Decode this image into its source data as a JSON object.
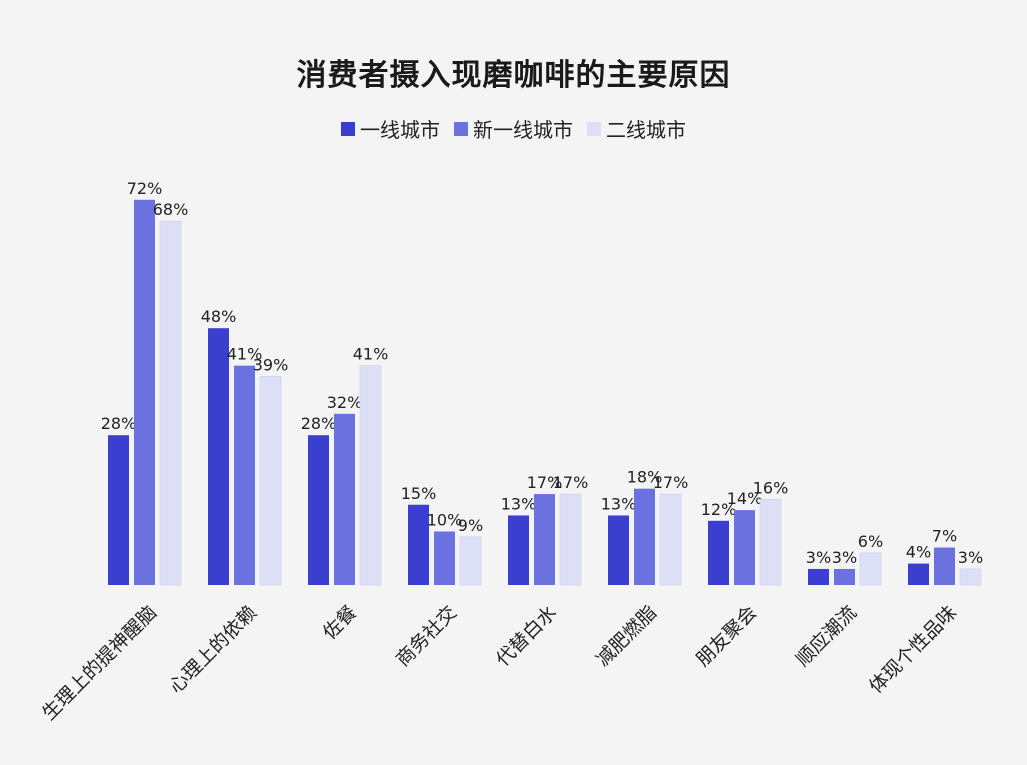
{
  "chart_data": {
    "type": "bar",
    "title": "消费者摄入现磨咖啡的主要原因",
    "categories": [
      "生理上的提神醒脑",
      "心理上的依赖",
      "佐餐",
      "商务社交",
      "代替白水",
      "减肥燃脂",
      "朋友聚会",
      "顺应潮流",
      "体现个性品味"
    ],
    "series": [
      {
        "name": "一线城市",
        "color": "#3a3fd0",
        "values": [
          28,
          48,
          28,
          15,
          13,
          13,
          12,
          3,
          4
        ]
      },
      {
        "name": "新一线城市",
        "color": "#6b72e0",
        "values": [
          72,
          41,
          32,
          10,
          17,
          18,
          14,
          3,
          7
        ]
      },
      {
        "name": "二线城市",
        "color": "#dcdff6",
        "values": [
          68,
          39,
          41,
          9,
          17,
          17,
          16,
          6,
          3
        ]
      }
    ],
    "value_suffix": "%",
    "ylim": [
      0,
      100
    ],
    "legend_position": "top-center",
    "grid": false
  }
}
